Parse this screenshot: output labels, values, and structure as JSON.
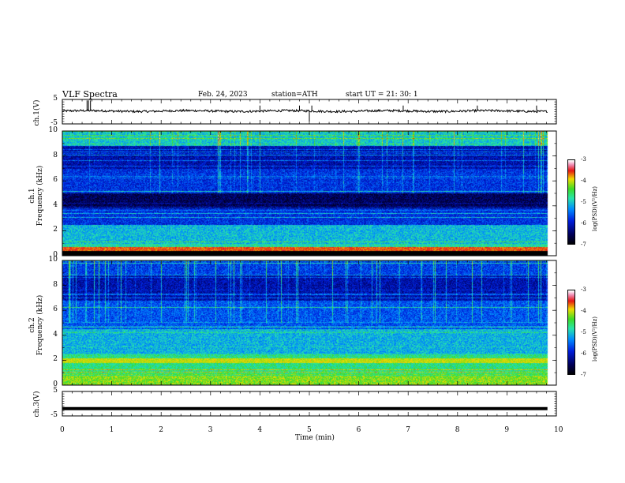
{
  "header": {
    "title": "VLF Spectra",
    "date": "Feb. 24, 2023",
    "station": "station=ATH",
    "start": "start UT = 21: 30: 1"
  },
  "chart_data": [
    {
      "type": "line",
      "ylabel": "ch.1(V)",
      "ylim": [
        -5,
        5
      ],
      "yticks": [
        "5",
        "-5"
      ],
      "xlim": [
        0,
        10
      ],
      "note": "time series near 0.3 V with spikes"
    },
    {
      "type": "heatmap",
      "ylabel": "ch.1\nFrequency (kHz)",
      "ylim": [
        0,
        10
      ],
      "yticks": [
        "10",
        "8",
        "6",
        "4",
        "2",
        "0"
      ],
      "xlim": [
        0,
        10
      ],
      "colorbar": {
        "label": "log(PSD)(V²/Hz)",
        "ticks": [
          "-3",
          "-4",
          "-5",
          "-6",
          "-7"
        ]
      }
    },
    {
      "type": "heatmap",
      "ylabel": "ch.2\nFrequency (kHz)",
      "ylim": [
        0,
        10
      ],
      "yticks": [
        "10",
        "8",
        "6",
        "4",
        "2",
        "0"
      ],
      "xlim": [
        0,
        10
      ],
      "colorbar": {
        "label": "log(PSD)(V²/Hz)",
        "ticks": [
          "-3",
          "-4",
          "-5",
          "-6",
          "-7"
        ]
      }
    },
    {
      "type": "line",
      "ylabel": "ch.3(V)",
      "ylim": [
        -5,
        5
      ],
      "yticks": [
        "5",
        "-5"
      ],
      "xlim": [
        0,
        10
      ],
      "note": "flat line at about -2 V"
    }
  ],
  "xaxis": {
    "label": "Time (min)",
    "ticks": [
      "0",
      "1",
      "2",
      "3",
      "4",
      "5",
      "6",
      "7",
      "8",
      "9",
      "10"
    ]
  }
}
